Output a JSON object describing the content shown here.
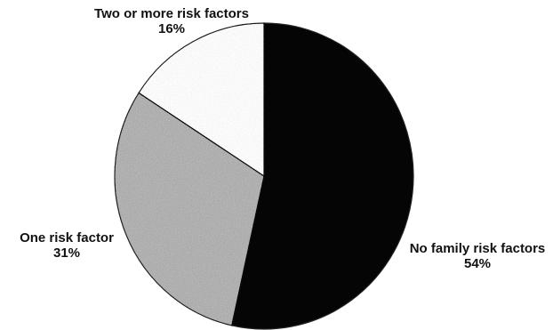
{
  "chart_data": {
    "type": "pie",
    "start_angle_deg": 0,
    "direction": "clockwise",
    "slices": [
      {
        "label": "No family risk factors",
        "value": 54,
        "value_label": "54%",
        "color": "#050505"
      },
      {
        "label": "One risk factor",
        "value": 31,
        "value_label": "31%",
        "color": "#a9a9a9"
      },
      {
        "label": "Two or more risk factors",
        "value": 16,
        "value_label": "16%",
        "color": "#f4f4f4"
      }
    ]
  }
}
